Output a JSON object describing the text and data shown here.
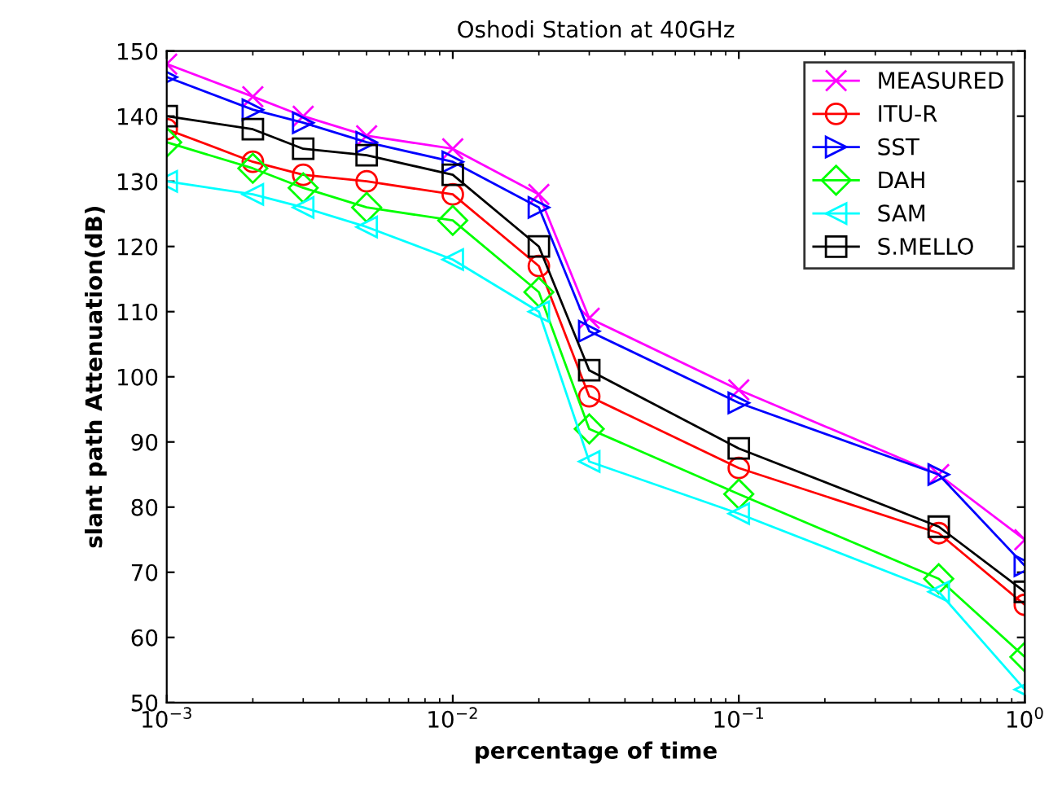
{
  "chart_data": {
    "type": "line",
    "title": "Oshodi Station at 40GHz",
    "xlabel": "percentage of time",
    "ylabel": "slant path Attenuation(dB)",
    "x": [
      0.001,
      0.002,
      0.003,
      0.005,
      0.01,
      0.02,
      0.03,
      0.1,
      0.5,
      1
    ],
    "log": "x",
    "xlim": [
      0.001,
      1
    ],
    "xticks": [
      {
        "value": 0.001,
        "label": "10$^{−3}$"
      },
      {
        "value": 0.01,
        "label": "10$^{−2}$"
      },
      {
        "value": 0.1,
        "label": "10$^{−1}$"
      },
      {
        "value": 1,
        "label": "10$^{0}$"
      }
    ],
    "ylim": [
      50,
      150
    ],
    "yticks": [
      50,
      60,
      70,
      80,
      90,
      100,
      110,
      120,
      130,
      140,
      150
    ],
    "grid": false,
    "legend": "top right",
    "line_style": "solid",
    "series": [
      {
        "name": "MEASURED",
        "color": "#ff00ff",
        "marker": "cross",
        "values": [
          148,
          143,
          140,
          137,
          135,
          128,
          109,
          98,
          85,
          75
        ]
      },
      {
        "name": "ITU-R",
        "color": "#ff0000",
        "marker": "circle",
        "values": [
          138,
          133,
          131,
          130,
          128,
          117,
          97,
          86,
          76,
          65
        ]
      },
      {
        "name": "SST",
        "color": "#0000ff",
        "marker": "triangle_right",
        "values": [
          146,
          141,
          139,
          136,
          133,
          126,
          107,
          96,
          85,
          71
        ]
      },
      {
        "name": "DAH",
        "color": "#00ff00",
        "marker": "diamond",
        "values": [
          136,
          132,
          129,
          126,
          124,
          113,
          92,
          82,
          69,
          57
        ]
      },
      {
        "name": "SAM",
        "color": "#00ffff",
        "marker": "triangle_left",
        "values": [
          130,
          128,
          126,
          123,
          118,
          110,
          87,
          79,
          67,
          52
        ]
      },
      {
        "name": "S.MELLO",
        "color": "#000000",
        "marker": "square",
        "values": [
          140,
          138,
          135,
          134,
          131,
          120,
          101,
          89,
          77,
          67
        ]
      }
    ]
  }
}
